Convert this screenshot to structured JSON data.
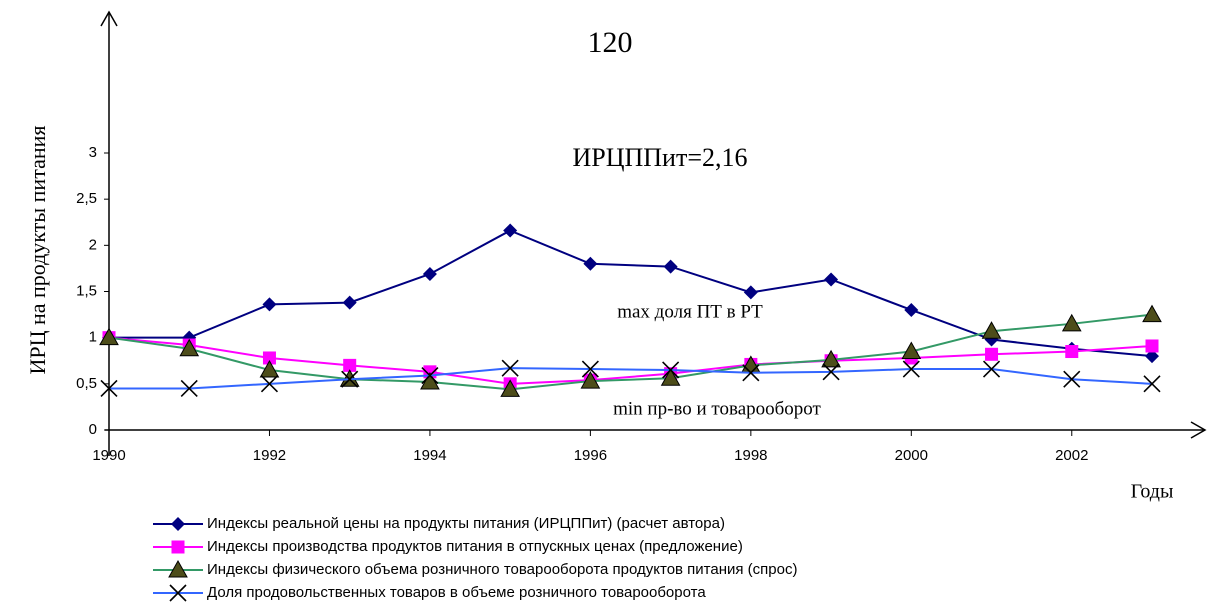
{
  "chart_data": {
    "type": "line",
    "page_number": "120",
    "ylabel": "ИРЦ на продукты питания",
    "xlabel": "Годы",
    "annotations": [
      "ИРЦППит=2,16",
      "max доля ПТ в РТ",
      "min пр-во и товарооборот"
    ],
    "x": [
      1990,
      1991,
      1992,
      1993,
      1994,
      1995,
      1996,
      1997,
      1998,
      1999,
      2000,
      2001,
      2002,
      2003
    ],
    "xlim": [
      1990,
      2003
    ],
    "xticks": [
      1990,
      1992,
      1994,
      1996,
      1998,
      2000,
      2002
    ],
    "ylim": [
      0,
      3
    ],
    "yticks": [
      0,
      {
        "value": 0.5,
        "label": "0,5"
      },
      1,
      {
        "value": 1.5,
        "label": "1,5"
      },
      2,
      {
        "value": 2.5,
        "label": "2,5"
      },
      3
    ],
    "series": [
      {
        "name": "Индексы реальной цены на продукты питания (ИРЦППит) (расчет автора)",
        "color": "#000080",
        "marker": "diamond",
        "values": [
          1.0,
          1.0,
          1.36,
          1.38,
          1.69,
          2.16,
          1.8,
          1.77,
          1.49,
          1.63,
          1.3,
          0.98,
          0.88,
          0.8
        ]
      },
      {
        "name": "Индексы производства продуктов питания в отпускных ценах (предложение)",
        "color": "#ff00ff",
        "marker": "square",
        "values": [
          1.0,
          0.92,
          0.78,
          0.7,
          0.63,
          0.5,
          0.54,
          0.61,
          0.71,
          0.75,
          0.78,
          0.82,
          0.85,
          0.91
        ]
      },
      {
        "name": "Индексы физического объема розничного товарооборота продуктов питания (спрос)",
        "color": "#339966",
        "marker": "triangle",
        "values": [
          1.0,
          0.88,
          0.65,
          0.55,
          0.52,
          0.44,
          0.53,
          0.56,
          0.7,
          0.76,
          0.85,
          1.07,
          1.15,
          1.25
        ]
      },
      {
        "name": "Доля продовольственных товаров в объеме розничного товарооборота",
        "color": "#3366ff",
        "marker": "x",
        "values": [
          0.45,
          0.45,
          0.5,
          0.55,
          0.59,
          0.67,
          0.66,
          0.65,
          0.62,
          0.63,
          0.66,
          0.66,
          0.55,
          0.5
        ]
      }
    ]
  }
}
